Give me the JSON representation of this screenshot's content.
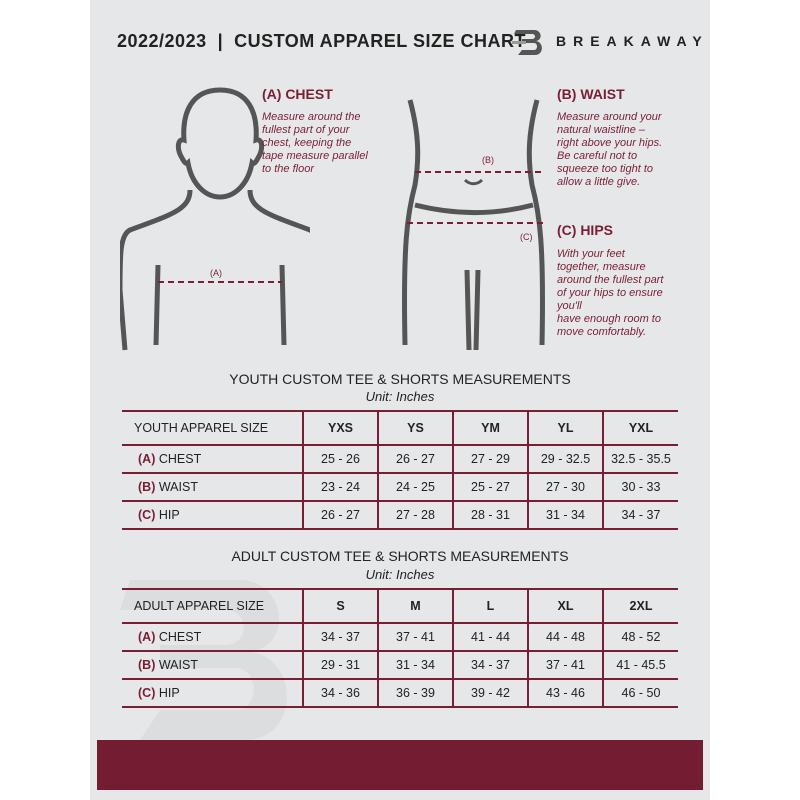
{
  "header": {
    "title": "2022/2023  |  CUSTOM APPAREL SIZE CHART",
    "brand": "BREAKAWAY",
    "logo_letter": "B"
  },
  "chest": {
    "heading": "(A) CHEST",
    "lines": [
      "Measure around the",
      "fullest part of your",
      "chest, keeping the",
      "tape measure parallel",
      "to the floor"
    ],
    "marker": "(A)"
  },
  "waist": {
    "heading": "(B) WAIST",
    "lines": [
      "Measure around your",
      "natural waistline –",
      "right above your hips.",
      "Be careful not to",
      "squeeze too tight to",
      "allow a little give."
    ],
    "marker": "(B)"
  },
  "hips": {
    "heading": "(C) HIPS",
    "lines": [
      "With your feet",
      "together, measure",
      "around the fullest part",
      "of your hips to ensure",
      "you'll",
      "have enough room to",
      "move comfortably."
    ],
    "marker": "(C)"
  },
  "colors": {
    "accent": "#7a1e35",
    "footer": "#741c32",
    "panel": "#e6e7e8"
  },
  "youth": {
    "title": "YOUTH CUSTOM TEE & SHORTS MEASUREMENTS",
    "unit": "Unit: Inches",
    "header": [
      "YOUTH APPAREL SIZE",
      "YXS",
      "YS",
      "YM",
      "YL",
      "YXL"
    ],
    "rows": [
      {
        "code": "(A)",
        "label": "CHEST",
        "values": [
          "25 - 26",
          "26 - 27",
          "27 - 29",
          "29 - 32.5",
          "32.5 - 35.5"
        ]
      },
      {
        "code": "(B)",
        "label": "WAIST",
        "values": [
          "23 - 24",
          "24 - 25",
          "25 - 27",
          "27 - 30",
          "30 - 33"
        ]
      },
      {
        "code": "(C)",
        "label": "HIP",
        "values": [
          "26 - 27",
          "27 - 28",
          "28 - 31",
          "31 - 34",
          "34 - 37"
        ]
      }
    ]
  },
  "adult": {
    "title": "ADULT CUSTOM TEE & SHORTS MEASUREMENTS",
    "unit": "Unit: Inches",
    "header": [
      "ADULT APPAREL SIZE",
      "S",
      "M",
      "L",
      "XL",
      "2XL"
    ],
    "rows": [
      {
        "code": "(A)",
        "label": "CHEST",
        "values": [
          "34 - 37",
          "37 - 41",
          "41 - 44",
          "44 - 48",
          "48 - 52"
        ]
      },
      {
        "code": "(B)",
        "label": "WAIST",
        "values": [
          "29 - 31",
          "31 - 34",
          "34 - 37",
          "37 - 41",
          "41 - 45.5"
        ]
      },
      {
        "code": "(C)",
        "label": "HIP",
        "values": [
          "34 - 36",
          "36 - 39",
          "39 - 42",
          "43 - 46",
          "46 - 50"
        ]
      }
    ]
  }
}
